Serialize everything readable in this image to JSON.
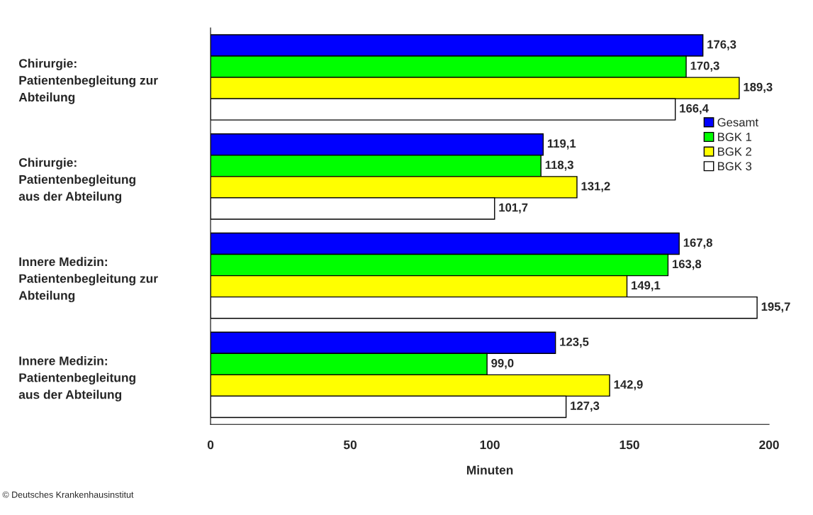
{
  "chart_data": {
    "type": "bar",
    "orientation": "horizontal",
    "xlabel": "Minuten",
    "categories": [
      "Chirurgie:\nPatientenbegleitung zur\nAbteilung",
      "Chirurgie:\nPatientenbegleitung\naus der Abteilung",
      "Innere Medizin:\nPatientenbegleitung zur\nAbteilung",
      "Innere Medizin:\nPatientenbegleitung\naus der Abteilung"
    ],
    "series": [
      {
        "name": "Gesamt",
        "color": "#0000ff",
        "values": [
          176.3,
          119.1,
          167.8,
          123.5
        ],
        "value_labels": [
          "176,3",
          "119,1",
          "167,8",
          "123,5"
        ]
      },
      {
        "name": "BGK 1",
        "color": "#00ff00",
        "values": [
          170.3,
          118.3,
          163.8,
          99.0
        ],
        "value_labels": [
          "170,3",
          "118,3",
          "163,8",
          "99,0"
        ]
      },
      {
        "name": "BGK 2",
        "color": "#ffff00",
        "values": [
          189.3,
          131.2,
          149.1,
          142.9
        ],
        "value_labels": [
          "189,3",
          "131,2",
          "149,1",
          "142,9"
        ]
      },
      {
        "name": "BGK 3",
        "color": "#ffffff",
        "values": [
          166.4,
          101.7,
          195.7,
          127.3
        ],
        "value_labels": [
          "166,4",
          "101,7",
          "195,7",
          "127,3"
        ]
      }
    ],
    "xlim": [
      0,
      200
    ],
    "xticks": [
      0,
      50,
      100,
      150,
      200
    ],
    "grid": false,
    "legend": "right",
    "annotations": [
      "© Deutsches Krankenhausinstitut"
    ]
  }
}
